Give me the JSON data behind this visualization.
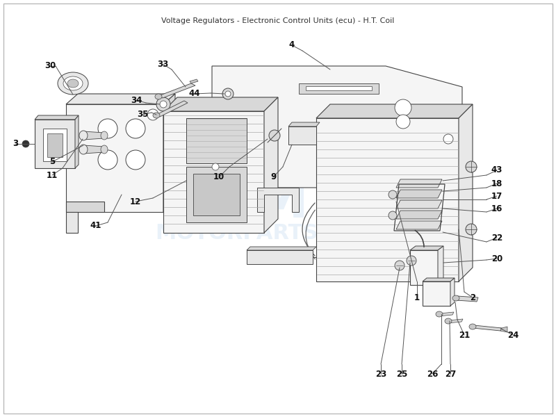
{
  "title": "Voltage Regulators - Electronic Control Units (ecu) - H.T. Coil",
  "bg": "#ffffff",
  "border": "#bbbbbb",
  "lc": "#333333",
  "wm_color": "#c8ddf0",
  "label_fs": 8.5,
  "part_fc": "#f5f5f5",
  "part_ec": "#444444",
  "shade1": "#e8e8e8",
  "shade2": "#d8d8d8",
  "shade3": "#c8c8c8"
}
